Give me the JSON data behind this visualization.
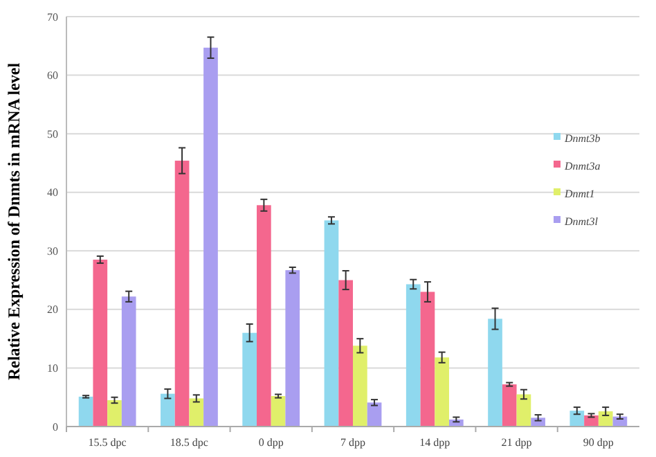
{
  "chart_data": {
    "type": "bar",
    "ylabel": "Relative Expression of Dnmts in mRNA level",
    "categories": [
      "15.5 dpc",
      "18.5 dpc",
      "0 dpp",
      "7 dpp",
      "14 dpp",
      "21 dpp",
      "90 dpp"
    ],
    "series": [
      {
        "name": "Dnmt3b",
        "color": "#8fd8ee",
        "values": [
          5.1,
          5.6,
          16.0,
          35.2,
          24.3,
          18.4,
          2.7
        ],
        "errors": [
          0.2,
          0.8,
          1.5,
          0.6,
          0.8,
          1.8,
          0.6
        ]
      },
      {
        "name": "Dnmt3a",
        "color": "#f4678e",
        "values": [
          28.5,
          45.4,
          37.8,
          25.0,
          23.0,
          7.2,
          1.9
        ],
        "errors": [
          0.6,
          2.2,
          1.0,
          1.6,
          1.7,
          0.3,
          0.3
        ]
      },
      {
        "name": "Dnmt1",
        "color": "#e0ef6a",
        "values": [
          4.5,
          4.8,
          5.2,
          13.8,
          11.8,
          5.5,
          2.6
        ],
        "errors": [
          0.5,
          0.6,
          0.3,
          1.2,
          0.9,
          0.8,
          0.7
        ]
      },
      {
        "name": "Dnmt3l",
        "color": "#a99ef0",
        "values": [
          22.2,
          64.7,
          26.7,
          4.1,
          1.2,
          1.5,
          1.7
        ],
        "errors": [
          0.9,
          1.8,
          0.5,
          0.5,
          0.4,
          0.5,
          0.4
        ]
      }
    ],
    "ylim": [
      0,
      70
    ],
    "yticks": [
      0,
      10,
      20,
      30,
      40,
      50,
      60,
      70
    ],
    "grid": "y",
    "legend": "right"
  }
}
